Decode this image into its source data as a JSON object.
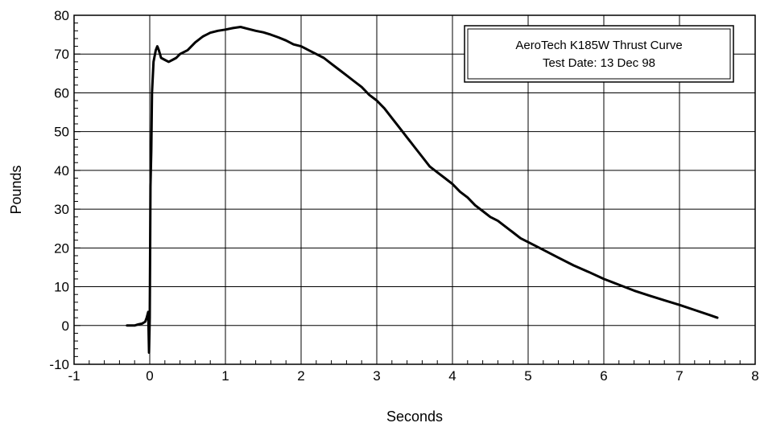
{
  "chart_data": {
    "type": "line",
    "title": "AeroTech K185W Thrust Curve",
    "subtitle": "Test Date: 13 Dec 98",
    "xlabel": "Seconds",
    "ylabel": "Pounds",
    "xlim": [
      -1,
      8
    ],
    "ylim": [
      -10,
      80
    ],
    "x_ticks": [
      -1,
      0,
      1,
      2,
      3,
      4,
      5,
      6,
      7,
      8
    ],
    "y_ticks": [
      -10,
      0,
      10,
      20,
      30,
      40,
      50,
      60,
      70,
      80
    ],
    "x_tick_labels": [
      "-1",
      "0",
      "1",
      "2",
      "3",
      "4",
      "5",
      "6",
      "7",
      "8"
    ],
    "y_tick_labels": [
      "-10",
      "0",
      "10",
      "20",
      "30",
      "40",
      "50",
      "60",
      "70",
      "80"
    ],
    "grid": true,
    "legend_position": "top-right",
    "colors": {
      "line": "#000000",
      "grid": "#000000",
      "background": "#ffffff"
    },
    "series": [
      {
        "x": [
          -0.3,
          -0.25,
          -0.2,
          -0.15,
          -0.1,
          -0.06,
          -0.04,
          -0.02,
          -0.01,
          0.0,
          0.005,
          0.01,
          0.02,
          0.03,
          0.05,
          0.08,
          0.1,
          0.12,
          0.15,
          0.2,
          0.25,
          0.3,
          0.35,
          0.4,
          0.5,
          0.6,
          0.7,
          0.8,
          0.9,
          1.0,
          1.1,
          1.2,
          1.3,
          1.4,
          1.5,
          1.6,
          1.7,
          1.8,
          1.9,
          2.0,
          2.1,
          2.2,
          2.3,
          2.4,
          2.5,
          2.6,
          2.7,
          2.8,
          2.9,
          3.0,
          3.1,
          3.2,
          3.3,
          3.4,
          3.5,
          3.6,
          3.7,
          3.8,
          3.9,
          4.0,
          4.1,
          4.2,
          4.3,
          4.4,
          4.5,
          4.6,
          4.7,
          4.8,
          4.9,
          5.0,
          5.2,
          5.4,
          5.6,
          5.8,
          6.0,
          6.2,
          6.4,
          6.6,
          6.8,
          7.0,
          7.2,
          7.4,
          7.5
        ],
        "y": [
          0,
          0,
          0,
          0.3,
          0.5,
          1,
          2,
          3.5,
          -7,
          2,
          20,
          36,
          45,
          60,
          68,
          71,
          72,
          71,
          69,
          68.5,
          68,
          68.5,
          69,
          70,
          71,
          73,
          74.5,
          75.5,
          76,
          76.3,
          76.7,
          77,
          76.5,
          76,
          75.6,
          75,
          74.3,
          73.5,
          72.5,
          72,
          71,
          70,
          69,
          67.5,
          66,
          64.5,
          63,
          61.5,
          59.5,
          58,
          56,
          53.5,
          51,
          48.5,
          46,
          43.5,
          41,
          39.5,
          38,
          36.5,
          34.5,
          33,
          31,
          29.5,
          28,
          27,
          25.5,
          24,
          22.5,
          21.5,
          19.5,
          17.5,
          15.5,
          13.8,
          12,
          10.5,
          9,
          7.7,
          6.5,
          5.3,
          4,
          2.7,
          2
        ]
      }
    ]
  }
}
